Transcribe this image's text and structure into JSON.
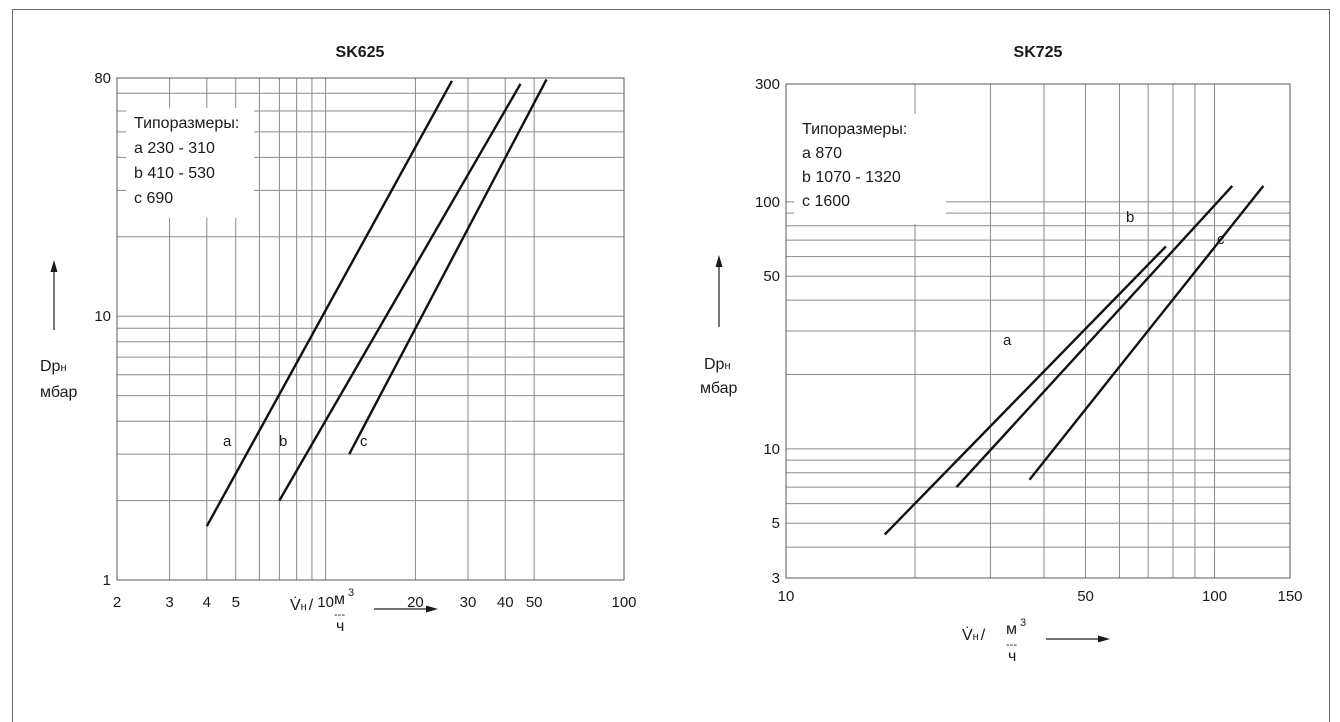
{
  "chart_data": [
    {
      "type": "line",
      "title": "SK625",
      "x_scale": "log",
      "y_scale": "log",
      "xlim": [
        2,
        100
      ],
      "ylim": [
        1,
        80
      ],
      "x_ticks": [
        "2",
        "3",
        "4",
        "5",
        "10",
        "20",
        "30",
        "40",
        "50",
        "100"
      ],
      "y_ticks": [
        "1",
        "10",
        "80"
      ],
      "ylabel": {
        "main": "Dp",
        "sub": "н",
        "unit": "мбар"
      },
      "xlabel": {
        "main": "V̇",
        "sub": "н",
        "slash": "/",
        "num": "м",
        "num_sup": "3",
        "dash": "---",
        "den": "ч"
      },
      "legend": {
        "title": "Типоразмеры:",
        "items": [
          "a  230 - 310",
          "b  410 - 530",
          "c  690"
        ]
      },
      "grid": true,
      "series": [
        {
          "name": "a",
          "x": [
            4.0,
            26.5
          ],
          "y": [
            1.6,
            78
          ]
        },
        {
          "name": "b",
          "x": [
            7.0,
            45
          ],
          "y": [
            2.0,
            76
          ]
        },
        {
          "name": "c",
          "x": [
            12.0,
            55
          ],
          "y": [
            3.0,
            79
          ]
        }
      ]
    },
    {
      "type": "line",
      "title": "SK725",
      "x_scale": "log",
      "y_scale": "log",
      "xlim": [
        10,
        150
      ],
      "ylim": [
        3,
        300
      ],
      "x_ticks": [
        "10",
        "50",
        "100",
        "150"
      ],
      "y_ticks": [
        "3",
        "5",
        "10",
        "50",
        "100",
        "300"
      ],
      "ylabel": {
        "main": "Dp",
        "sub": "н",
        "unit": "мбар"
      },
      "xlabel": {
        "main": "V̇",
        "sub": "н",
        "slash": "/",
        "num": "м",
        "num_sup": "3",
        "dash": "---",
        "den": "ч"
      },
      "legend": {
        "title": "Типоразмеры:",
        "items": [
          "a  870",
          "b  1070 - 1320",
          "c  1600"
        ]
      },
      "grid": true,
      "series": [
        {
          "name": "a",
          "x": [
            17,
            77
          ],
          "y": [
            4.5,
            66
          ]
        },
        {
          "name": "b",
          "x": [
            25,
            110
          ],
          "y": [
            7.0,
            116
          ]
        },
        {
          "name": "c",
          "x": [
            37,
            130
          ],
          "y": [
            7.5,
            116
          ]
        }
      ]
    }
  ]
}
